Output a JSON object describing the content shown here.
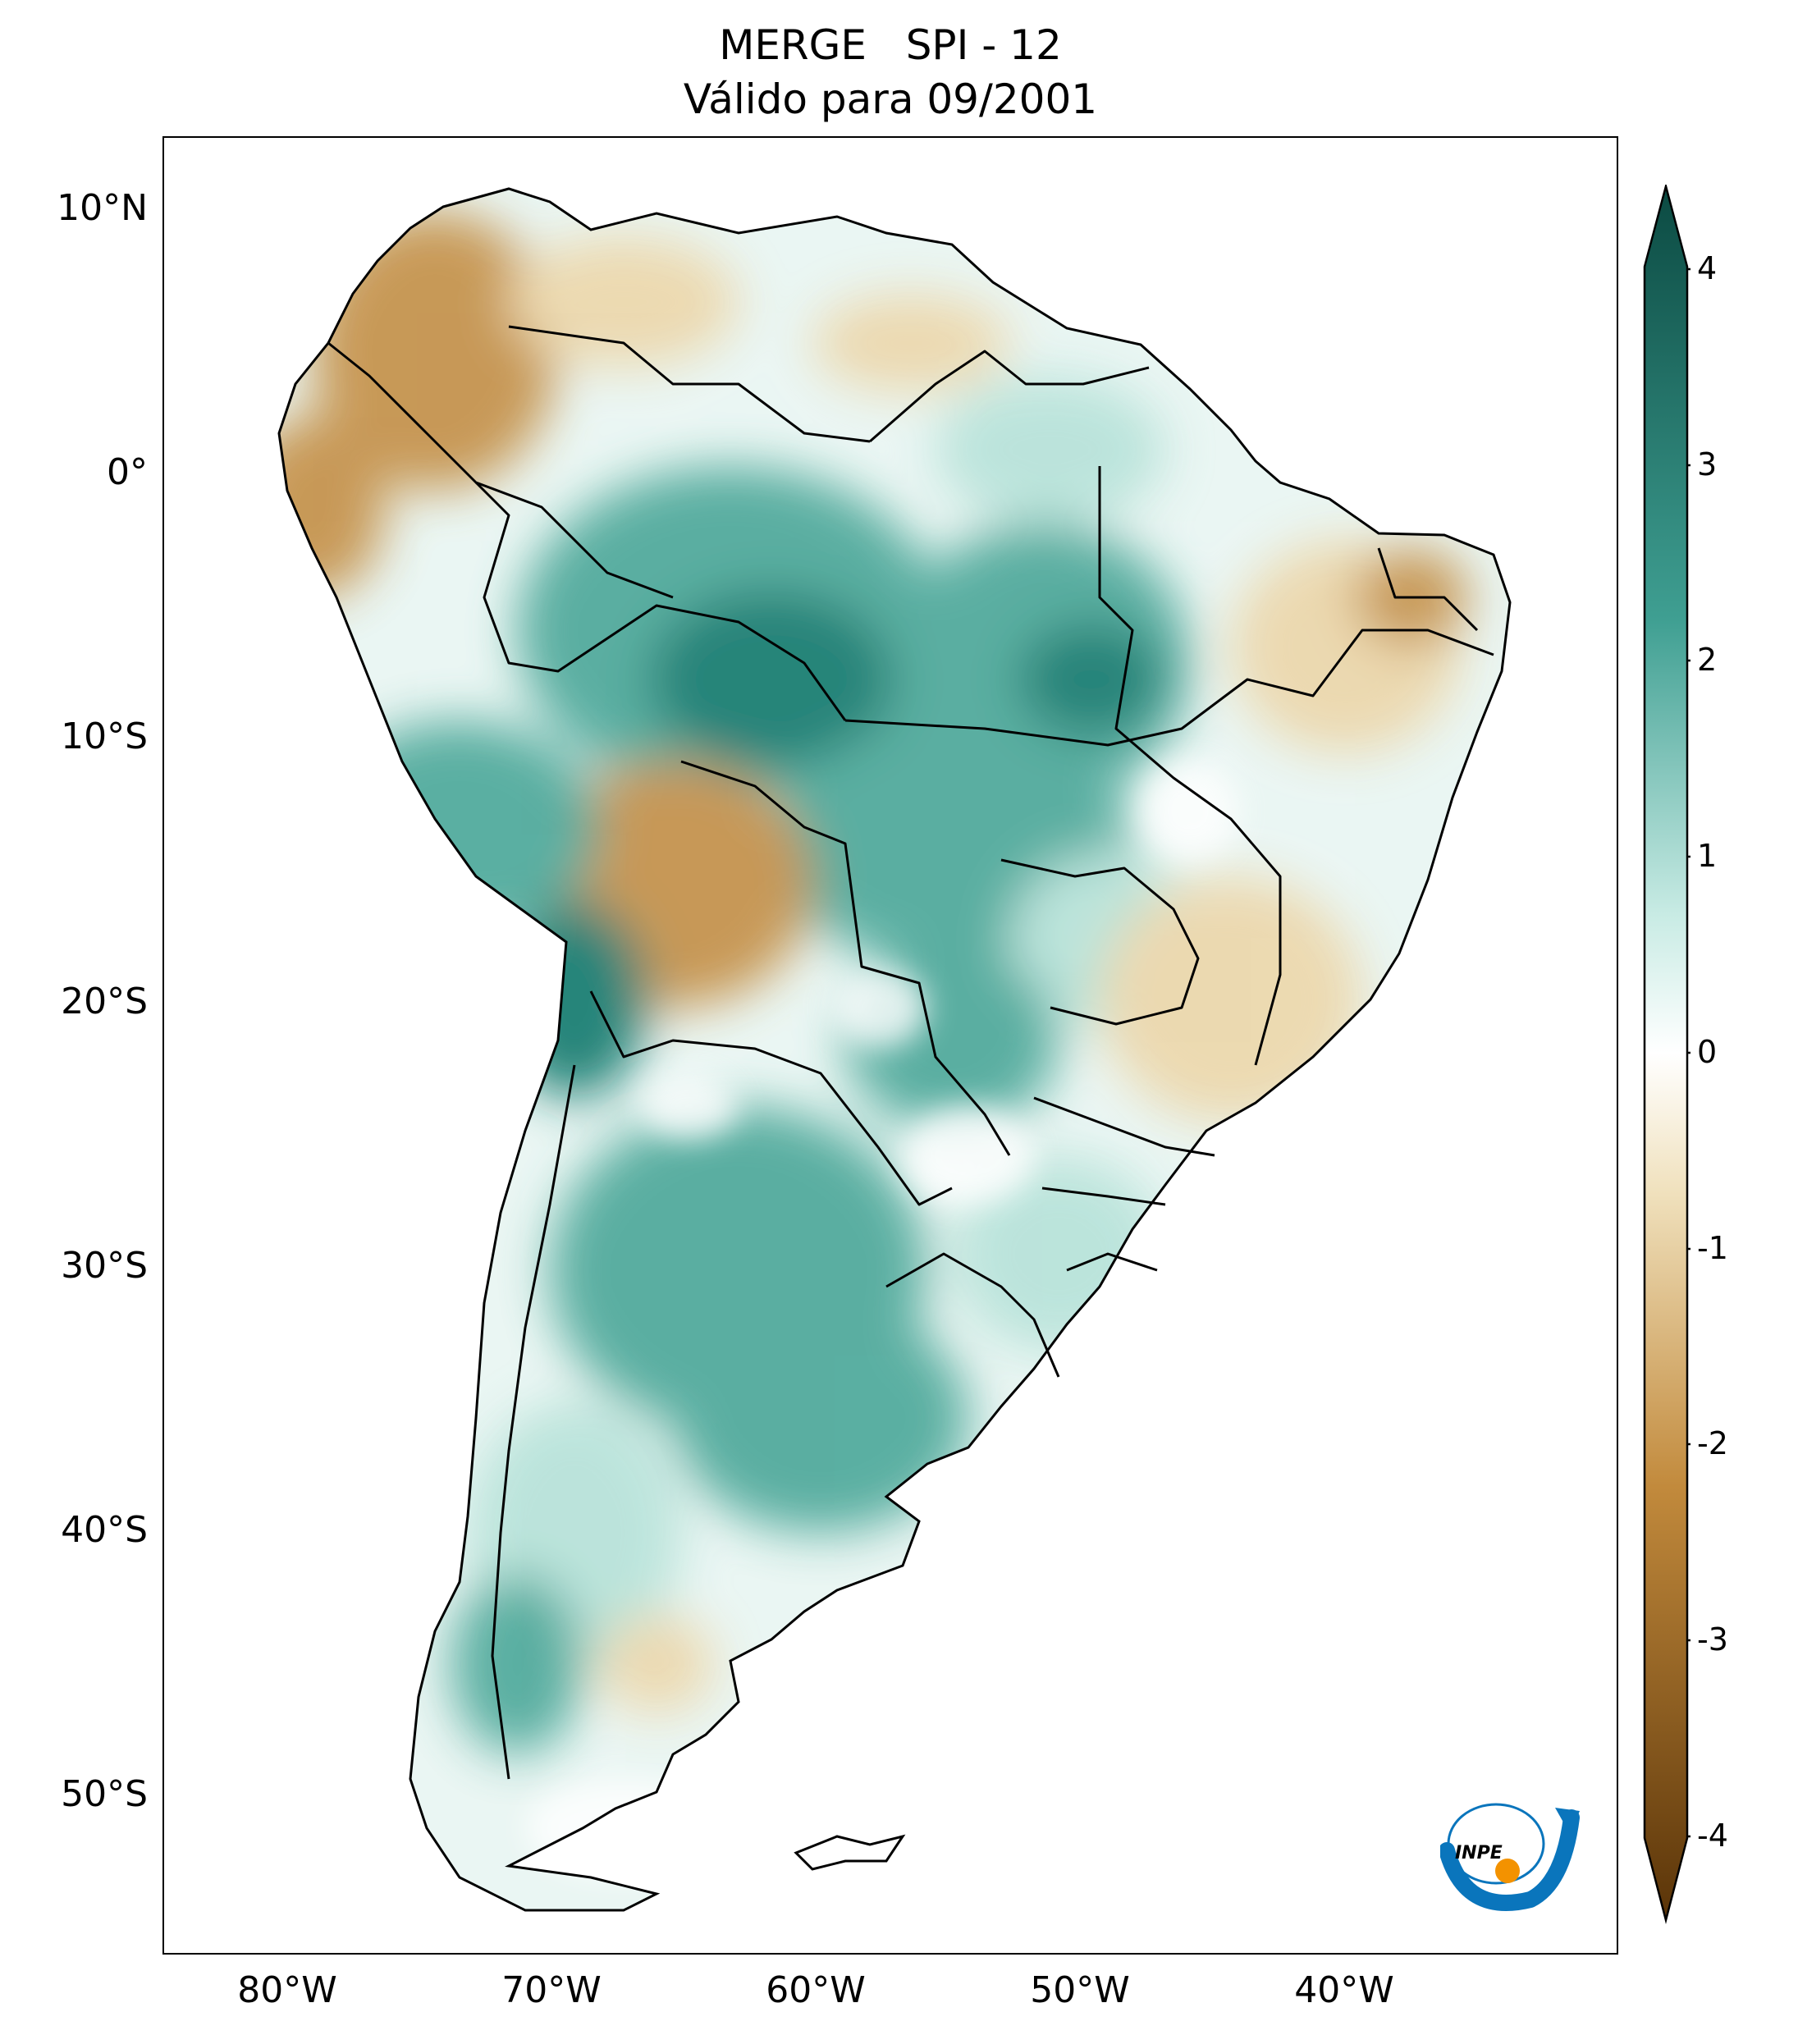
{
  "title": {
    "line1": "MERGE   SPI - 12",
    "line2": "Válido para 09/2001"
  },
  "axes": {
    "lat_ticks": [
      "10°N",
      "0°",
      "10°S",
      "20°S",
      "30°S",
      "40°S",
      "50°S"
    ],
    "lon_ticks": [
      "80°W",
      "70°W",
      "60°W",
      "50°W",
      "40°W"
    ]
  },
  "colorbar": {
    "ticks": [
      "4",
      "3",
      "2",
      "1",
      "0",
      "-1",
      "-2",
      "-3",
      "-4"
    ],
    "colors": {
      "dry_max": "#5a3408",
      "dry_mid": "#c28a3c",
      "dry_low": "#f0e1bd",
      "neutral": "#ffffff",
      "wet_low": "#c8ebe4",
      "wet_mid": "#3f9f92",
      "wet_max": "#0b4a42"
    }
  },
  "logo": {
    "text": "INPE"
  },
  "palette": {
    "dry": "#c69450",
    "dry_light": "#ecd8ad",
    "wet": "#52ab9d",
    "wet_dark": "#1d7f73",
    "wet_light": "#b9e3da"
  }
}
